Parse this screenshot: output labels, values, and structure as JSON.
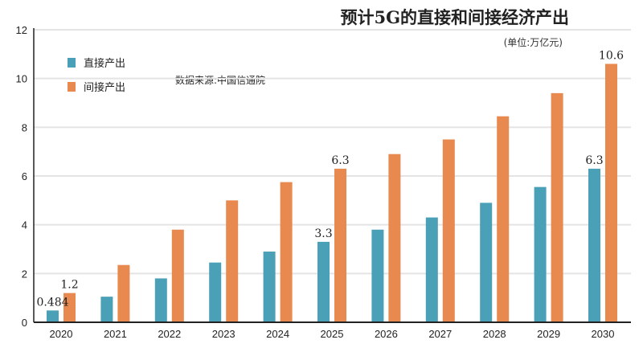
{
  "chart_data": {
    "type": "bar",
    "title": "预计5G的直接和间接经济产出",
    "unit_note": "(单位:万亿元)",
    "source_note": "数据来源:中国信通院",
    "categories": [
      "2020",
      "2021",
      "2022",
      "2023",
      "2024",
      "2025",
      "2026",
      "2027",
      "2028",
      "2029",
      "2030"
    ],
    "series": [
      {
        "name": "直接产出",
        "color": "#4aa0b6",
        "values": [
          0.484,
          1.05,
          1.8,
          2.45,
          2.9,
          3.3,
          3.8,
          4.3,
          4.9,
          5.55,
          6.3
        ]
      },
      {
        "name": "间接产出",
        "color": "#e8894f",
        "values": [
          1.2,
          2.35,
          3.8,
          5.0,
          5.75,
          6.3,
          6.9,
          7.5,
          8.45,
          9.4,
          10.6
        ]
      }
    ],
    "data_labels": [
      {
        "series": 0,
        "category": "2020",
        "text": "0.484"
      },
      {
        "series": 1,
        "category": "2020",
        "text": "1.2"
      },
      {
        "series": 0,
        "category": "2025",
        "text": "3.3"
      },
      {
        "series": 1,
        "category": "2025",
        "text": "6.3"
      },
      {
        "series": 0,
        "category": "2030",
        "text": "6.3"
      },
      {
        "series": 1,
        "category": "2030",
        "text": "10.6"
      }
    ],
    "yticks": [
      "0",
      "2",
      "4",
      "6",
      "8",
      "10",
      "12"
    ],
    "ylim": [
      0,
      12
    ],
    "grid": true,
    "legend_position": "top-left"
  }
}
